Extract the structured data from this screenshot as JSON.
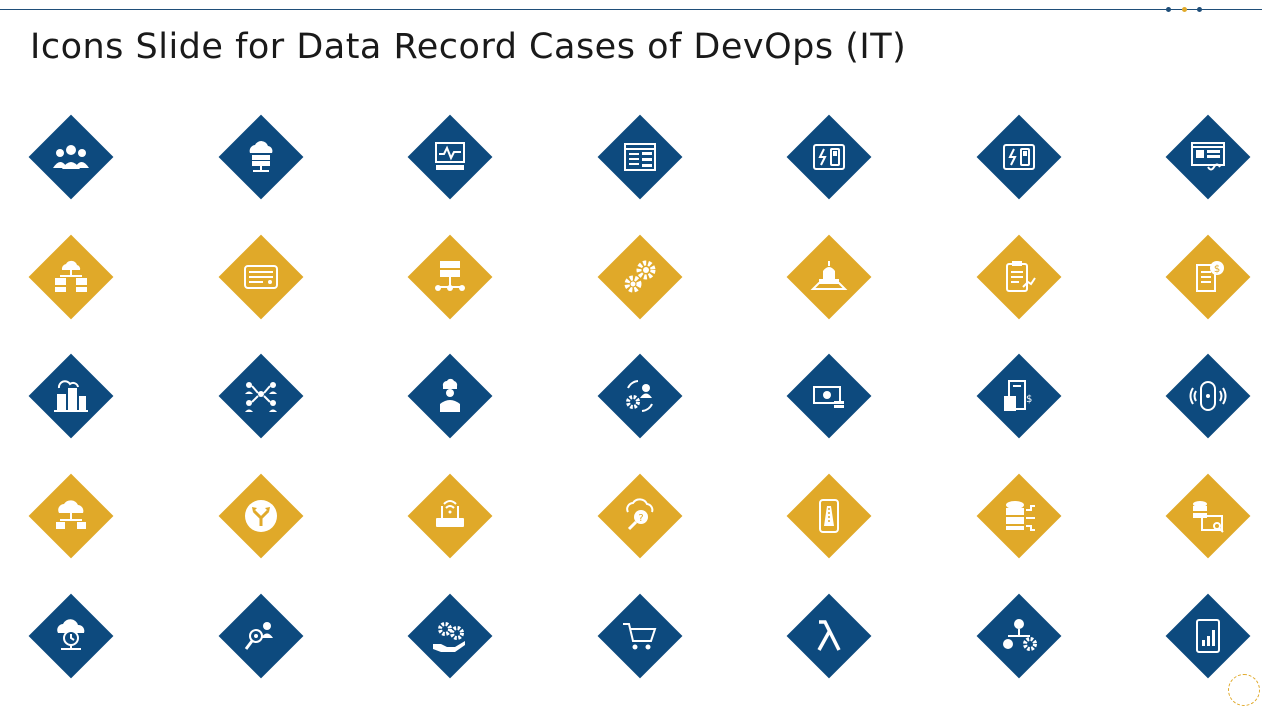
{
  "slide": {
    "title": "Icons Slide for Data Record Cases of DevOps (IT)"
  },
  "colors": {
    "blue": "#0d4a7e",
    "gold": "#e0a929",
    "title_text": "#1a1a1a",
    "line": "#1f4e79"
  },
  "icon_rows": [
    {
      "color": "blue",
      "icons": [
        "team-group-icon",
        "cloud-server-icon",
        "monitor-pulse-icon",
        "control-panel-sliders-icon",
        "power-switch-panel-icon",
        "electric-switch-icon",
        "web-window-design-icon"
      ]
    },
    {
      "color": "gold",
      "icons": [
        "cloud-network-hierarchy-icon",
        "server-rack-icon",
        "server-network-icon",
        "gears-icon",
        "building-platform-icon",
        "clipboard-growth-icon",
        "invoice-dollar-icon"
      ]
    },
    {
      "color": "blue",
      "icons": [
        "smart-city-icon",
        "people-network-icon",
        "chef-person-icon",
        "user-gear-cycle-icon",
        "cash-hand-icon",
        "financial-report-calculator-icon",
        "smart-speaker-icon"
      ]
    },
    {
      "color": "gold",
      "icons": [
        "cloud-gear-network-icon",
        "fork-arrows-icon",
        "wifi-router-icon",
        "cloud-question-search-icon",
        "mobile-road-icon",
        "database-connections-icon",
        "database-search-icon"
      ]
    },
    {
      "color": "blue",
      "icons": [
        "cloud-clock-icon",
        "user-search-icon",
        "hand-gears-icon",
        "shopping-cart-icon",
        "lambda-icon",
        "dollar-gear-hierarchy-icon",
        "tablet-chart-icon"
      ]
    }
  ]
}
